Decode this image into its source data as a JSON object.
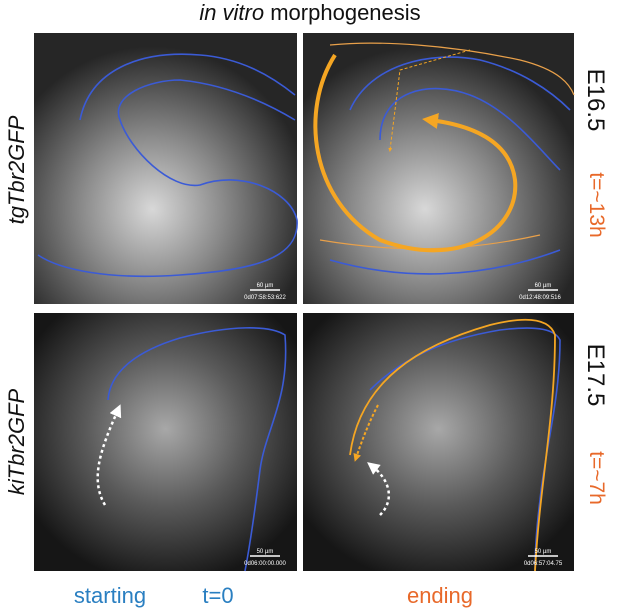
{
  "title": {
    "italic": "in vitro",
    "text": "morphogenesis"
  },
  "rows": [
    {
      "label": "tgTbr2GFP",
      "stage": "E16.5",
      "time": "t=~13h"
    },
    {
      "label": "kiTbr2GFP",
      "stage": "E17.5",
      "time": "t=~7h"
    }
  ],
  "panels": [
    {
      "scale": "60 µm",
      "timestamp": "0d07:58:53:622"
    },
    {
      "scale": "60 µm",
      "timestamp": "0d12:48:09:516"
    },
    {
      "scale": "50 µm",
      "timestamp": "0d06:00:00.000"
    },
    {
      "scale": "50 µm",
      "timestamp": "0d06:57:04.75"
    }
  ],
  "footer": {
    "starting": "starting",
    "t0": "t=0",
    "ending": "ending"
  }
}
